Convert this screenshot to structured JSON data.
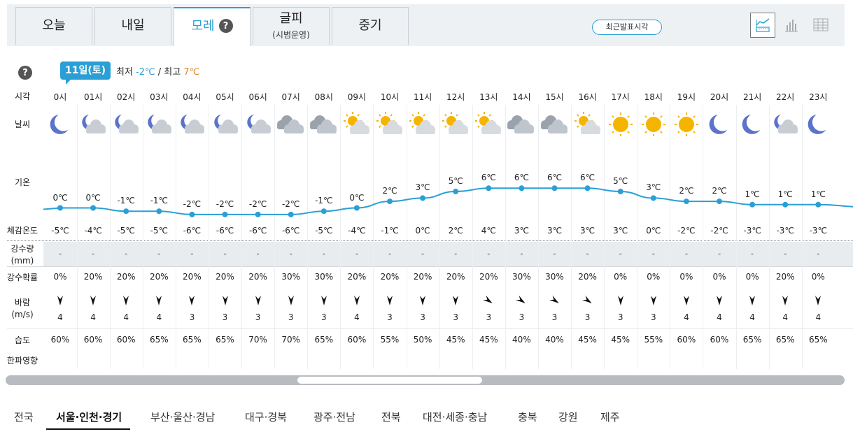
{
  "tabs": [
    {
      "label": "오늘",
      "sub": ""
    },
    {
      "label": "내일",
      "sub": ""
    },
    {
      "label": "모레",
      "sub": ""
    },
    {
      "label": "글피",
      "sub": "(시범운영)"
    },
    {
      "label": "중기",
      "sub": ""
    }
  ],
  "active_tab": 2,
  "latest_label": "최근발표시각",
  "help_icon": "?",
  "date": "11일(토)",
  "min_label": "최저",
  "min_value": "-2℃",
  "separator": "/",
  "max_label": "최고",
  "max_value": "7℃",
  "row_labels": {
    "time": "시각",
    "weather": "날씨",
    "temp": "기온",
    "feel": "체감온도",
    "precip_a": "강수량",
    "precip_b": "(mm)",
    "prob": "강수확률",
    "wind_a": "바람",
    "wind_b": "(m/s)",
    "humid": "습도",
    "cold": "한파영향"
  },
  "hours": [
    "0시",
    "01시",
    "02시",
    "03시",
    "04시",
    "05시",
    "06시",
    "07시",
    "08시",
    "09시",
    "10시",
    "11시",
    "12시",
    "13시",
    "14시",
    "15시",
    "16시",
    "17시",
    "18시",
    "19시",
    "20시",
    "21시",
    "22시",
    "23시"
  ],
  "weather_icons": [
    "moon",
    "moon-cloud",
    "moon-cloud",
    "moon-cloud",
    "moon-cloud",
    "moon-cloud",
    "moon-cloud",
    "cloudy",
    "cloudy",
    "sun-cloud",
    "sun-cloud",
    "sun-cloud",
    "sun-cloud",
    "sun-cloud",
    "cloudy",
    "cloudy",
    "sun-cloud",
    "sun",
    "sun",
    "sun",
    "moon",
    "moon",
    "moon-cloud",
    "moon"
  ],
  "temps": [
    "0℃",
    "0℃",
    "-1℃",
    "-1℃",
    "-2℃",
    "-2℃",
    "-2℃",
    "-2℃",
    "-1℃",
    "0℃",
    "2℃",
    "3℃",
    "5℃",
    "6℃",
    "6℃",
    "6℃",
    "6℃",
    "5℃",
    "3℃",
    "2℃",
    "2℃",
    "1℃",
    "1℃",
    "1℃"
  ],
  "temp_values": [
    0,
    0,
    -1,
    -1,
    -2,
    -2,
    -2,
    -2,
    -1,
    0,
    2,
    3,
    5,
    6,
    6,
    6,
    6,
    5,
    3,
    2,
    2,
    1,
    1,
    1
  ],
  "feel": [
    "-5℃",
    "-4℃",
    "-5℃",
    "-5℃",
    "-6℃",
    "-6℃",
    "-6℃",
    "-6℃",
    "-5℃",
    "-4℃",
    "-1℃",
    "0℃",
    "2℃",
    "4℃",
    "3℃",
    "3℃",
    "3℃",
    "3℃",
    "0℃",
    "-2℃",
    "-2℃",
    "-3℃",
    "-3℃",
    "-3℃"
  ],
  "precip": [
    "-",
    "-",
    "-",
    "-",
    "-",
    "-",
    "-",
    "-",
    "-",
    "-",
    "-",
    "-",
    "-",
    "-",
    "-",
    "-",
    "-",
    "-",
    "-",
    "-",
    "-",
    "-",
    "-",
    "-"
  ],
  "prob": [
    "0%",
    "20%",
    "20%",
    "20%",
    "20%",
    "20%",
    "20%",
    "30%",
    "30%",
    "20%",
    "20%",
    "20%",
    "20%",
    "20%",
    "30%",
    "30%",
    "20%",
    "0%",
    "0%",
    "0%",
    "0%",
    "0%",
    "20%",
    "0%"
  ],
  "wind_dir": [
    "S",
    "S",
    "S",
    "S",
    "S",
    "S",
    "S",
    "S",
    "S",
    "S",
    "S",
    "S",
    "S",
    "SW",
    "SW",
    "SW",
    "SW",
    "S",
    "S",
    "S",
    "S",
    "S",
    "S",
    "S"
  ],
  "wind_speed": [
    "4",
    "4",
    "4",
    "4",
    "3",
    "3",
    "3",
    "3",
    "3",
    "4",
    "3",
    "3",
    "3",
    "3",
    "3",
    "3",
    "3",
    "3",
    "3",
    "4",
    "4",
    "4",
    "4",
    "4"
  ],
  "humid": [
    "60%",
    "60%",
    "60%",
    "65%",
    "65%",
    "65%",
    "70%",
    "70%",
    "65%",
    "60%",
    "55%",
    "50%",
    "45%",
    "45%",
    "40%",
    "40%",
    "45%",
    "45%",
    "55%",
    "60%",
    "60%",
    "65%",
    "65%",
    "65%"
  ],
  "colors": {
    "accent": "#2a9fd6",
    "max": "#e0892a",
    "sun": "#f5b400"
  },
  "regions": [
    "전국",
    "서울·인천·경기",
    "부산·울산·경남",
    "대구·경북",
    "광주·전남",
    "전북",
    "대전·세종·충남",
    "충북",
    "강원",
    "제주"
  ],
  "active_region": 1
}
